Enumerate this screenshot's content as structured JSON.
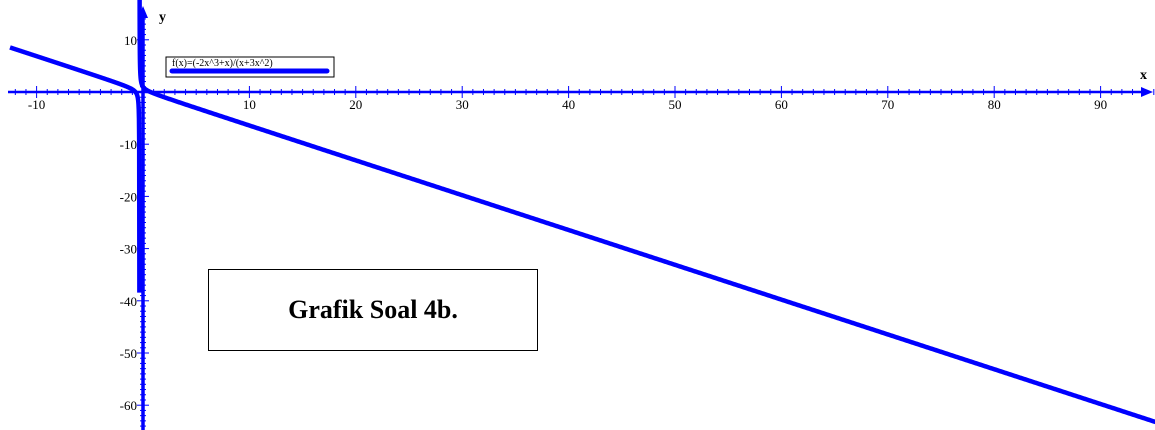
{
  "chart_data": {
    "type": "line",
    "title": "",
    "function_label": "f(x)=(-2x^3+x)/(x+3x^2)",
    "xlabel": "x",
    "ylabel": "y",
    "xlim": [
      -12.5,
      95.5
    ],
    "ylim": [
      -64,
      15
    ],
    "x_ticks": [
      -10,
      10,
      20,
      30,
      40,
      50,
      60,
      70,
      80,
      90
    ],
    "y_ticks": [
      10,
      -10,
      -20,
      -30,
      -40,
      -50,
      -60
    ],
    "grid": false,
    "legend_position": "top-left",
    "series": [
      {
        "name": "f(x)=(-2x^3+x)/(x+3x^2)",
        "color": "#0000ff",
        "x": [
          -12.5,
          -10,
          -6,
          -3,
          -1,
          -0.5,
          -0.4,
          -0.35,
          -0.34,
          -0.33,
          -0.3,
          -0.2,
          0,
          0.5,
          1,
          2,
          5,
          10,
          20,
          30,
          40,
          50,
          60,
          70,
          80,
          90,
          95.5
        ],
        "y": [
          8.94,
          7.26,
          4.6,
          2.63,
          1.5,
          2.0,
          3.6,
          8.4,
          12.1,
          15,
          -19.2,
          -4.4,
          -1.0,
          -0.4,
          -0.5,
          -1.0,
          -2.87,
          -6.21,
          -12.88,
          -19.54,
          -26.21,
          -32.88,
          -39.54,
          -46.21,
          -52.88,
          -59.54,
          -63.21
        ]
      }
    ]
  },
  "caption": "Grafik Soal 4b."
}
